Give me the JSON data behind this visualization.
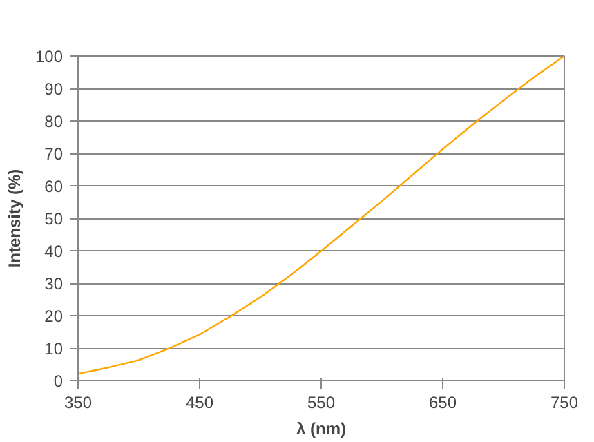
{
  "chart_data": {
    "type": "line",
    "xlabel": "λ (nm)",
    "ylabel": "Intensity (%)",
    "x": [
      350,
      375,
      400,
      425,
      450,
      475,
      500,
      525,
      550,
      575,
      600,
      625,
      650,
      675,
      700,
      725,
      750
    ],
    "series": [
      {
        "color": "#ffa500",
        "values": [
          2.1,
          4.0,
          6.3,
          9.9,
          14.2,
          19.7,
          25.7,
          32.5,
          39.9,
          47.6,
          55.3,
          63.3,
          71.3,
          79.0,
          86.3,
          93.4,
          100
        ]
      }
    ],
    "xlim": [
      350,
      750
    ],
    "xticks": [
      350,
      450,
      550,
      650,
      750
    ],
    "ylim": [
      0,
      100
    ],
    "yticks": [
      0,
      10,
      20,
      30,
      40,
      50,
      60,
      70,
      80,
      90,
      100
    ],
    "grid": "y",
    "marker": "none",
    "line_style": "solid"
  }
}
